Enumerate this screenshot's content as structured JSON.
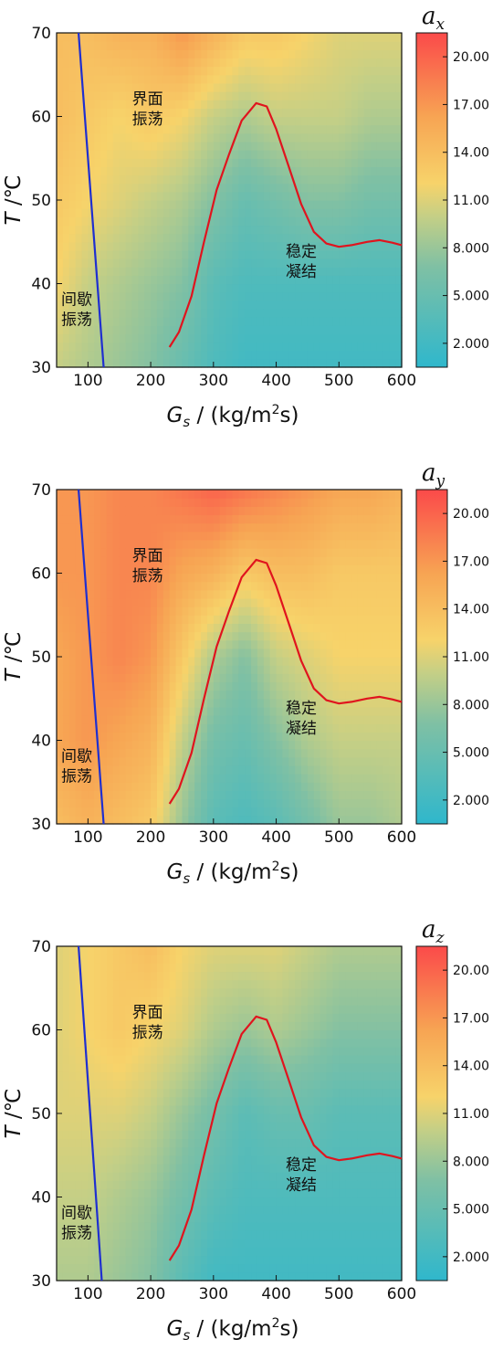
{
  "chart_data": [
    {
      "type": "heatmap",
      "title": "a_x",
      "title_base": "a",
      "title_sub": "x",
      "x_range": [
        50,
        600
      ],
      "y_range": [
        30,
        70
      ],
      "x_ticks": [
        "100",
        "200",
        "300",
        "400",
        "500",
        "600"
      ],
      "y_ticks": [
        "30",
        "40",
        "50",
        "60",
        "70"
      ],
      "xlabel_main": "G",
      "xlabel_sub": "s",
      "xlabel_rest": " / (kg/m",
      "xlabel_sup": "2",
      "xlabel_end": "s)",
      "ylabel_main": "T",
      "ylabel_rest": " /℃",
      "colorbar_ticks": [
        "2.000",
        "5.000",
        "8.000",
        "11.00",
        "14.00",
        "17.00",
        "20.00"
      ],
      "colorbar_range": [
        0.5,
        21.5
      ],
      "annotations": [
        {
          "lines": [
            "界面",
            "振荡"
          ],
          "x": 195,
          "y": 61.5
        },
        {
          "lines": [
            "稳定",
            "凝结"
          ],
          "x": 440,
          "y": 43.2
        },
        {
          "lines": [
            "间歇",
            "振荡"
          ],
          "x": 82,
          "y": 37.5
        }
      ],
      "blue_line": [
        [
          85,
          70
        ],
        [
          125,
          30
        ]
      ],
      "red_curve": [
        [
          230,
          32.4
        ],
        [
          245,
          34.2
        ],
        [
          265,
          38.5
        ],
        [
          285,
          45
        ],
        [
          305,
          51.2
        ],
        [
          325,
          55.5
        ],
        [
          345,
          59.5
        ],
        [
          368,
          61.6
        ],
        [
          385,
          61.2
        ],
        [
          400,
          58.5
        ],
        [
          420,
          54
        ],
        [
          440,
          49.5
        ],
        [
          460,
          46.2
        ],
        [
          480,
          44.8
        ],
        [
          500,
          44.4
        ],
        [
          520,
          44.6
        ],
        [
          545,
          45
        ],
        [
          565,
          45.2
        ],
        [
          585,
          44.9
        ],
        [
          600,
          44.6
        ]
      ],
      "field": {
        "x": [
          50,
          100,
          150,
          200,
          250,
          300,
          350,
          400,
          450,
          500,
          550,
          600
        ],
        "y": [
          30,
          40,
          50,
          60,
          70
        ],
        "z": [
          [
            10,
            9,
            8,
            7,
            5,
            3,
            2,
            2,
            2,
            2,
            2,
            2
          ],
          [
            12,
            10,
            9,
            8,
            7,
            4,
            3,
            3,
            3,
            3,
            3,
            3
          ],
          [
            13,
            12,
            11,
            10,
            9,
            7,
            5,
            6,
            7,
            7,
            6,
            6
          ],
          [
            14,
            13,
            12,
            13,
            12,
            10,
            9,
            10,
            10,
            10,
            9,
            9
          ],
          [
            14,
            14,
            15,
            15,
            17,
            15,
            13,
            13,
            12,
            11,
            11,
            11
          ]
        ]
      }
    },
    {
      "type": "heatmap",
      "title": "a_y",
      "title_base": "a",
      "title_sub": "y",
      "x_range": [
        50,
        600
      ],
      "y_range": [
        30,
        70
      ],
      "x_ticks": [
        "100",
        "200",
        "300",
        "400",
        "500",
        "600"
      ],
      "y_ticks": [
        "30",
        "40",
        "50",
        "60",
        "70"
      ],
      "xlabel_main": "G",
      "xlabel_sub": "s",
      "xlabel_rest": " / (kg/m",
      "xlabel_sup": "2",
      "xlabel_end": "s)",
      "ylabel_main": "T",
      "ylabel_rest": " /℃",
      "colorbar_ticks": [
        "2.000",
        "5.000",
        "8.000",
        "11.00",
        "14.00",
        "17.00",
        "20.00"
      ],
      "colorbar_range": [
        0.5,
        21.5
      ],
      "annotations": [
        {
          "lines": [
            "界面",
            "振荡"
          ],
          "x": 195,
          "y": 61.5
        },
        {
          "lines": [
            "稳定",
            "凝结"
          ],
          "x": 440,
          "y": 43.2
        },
        {
          "lines": [
            "间歇",
            "振荡"
          ],
          "x": 82,
          "y": 37.5
        }
      ],
      "blue_line": [
        [
          85,
          70
        ],
        [
          125,
          30
        ]
      ],
      "red_curve": [
        [
          230,
          32.4
        ],
        [
          245,
          34.2
        ],
        [
          265,
          38.5
        ],
        [
          285,
          45
        ],
        [
          305,
          51.2
        ],
        [
          325,
          55.5
        ],
        [
          345,
          59.5
        ],
        [
          368,
          61.6
        ],
        [
          385,
          61.2
        ],
        [
          400,
          58.5
        ],
        [
          420,
          54
        ],
        [
          440,
          49.5
        ],
        [
          460,
          46.2
        ],
        [
          480,
          44.8
        ],
        [
          500,
          44.4
        ],
        [
          520,
          44.6
        ],
        [
          545,
          45
        ],
        [
          565,
          45.2
        ],
        [
          585,
          44.9
        ],
        [
          600,
          44.6
        ]
      ],
      "field": {
        "x": [
          50,
          100,
          150,
          200,
          250,
          300,
          350,
          400,
          450,
          500,
          550,
          600
        ],
        "y": [
          30,
          40,
          50,
          60,
          70
        ],
        "z": [
          [
            14,
            15,
            14,
            13,
            8,
            4,
            3,
            4,
            6,
            8,
            8,
            9
          ],
          [
            16,
            17,
            16,
            15,
            10,
            6,
            5,
            7,
            9,
            10,
            10,
            10
          ],
          [
            16,
            17,
            18,
            17,
            13,
            9,
            7,
            10,
            11,
            12,
            12,
            12
          ],
          [
            17,
            17,
            18,
            18,
            16,
            15,
            13,
            14,
            14,
            13,
            13,
            13
          ],
          [
            17,
            17,
            18,
            18,
            19,
            20,
            19,
            18,
            17,
            16,
            16,
            15
          ]
        ]
      }
    },
    {
      "type": "heatmap",
      "title": "a_z",
      "title_base": "a",
      "title_sub": "z",
      "x_range": [
        50,
        600
      ],
      "y_range": [
        30,
        70
      ],
      "x_ticks": [
        "100",
        "200",
        "300",
        "400",
        "500",
        "600"
      ],
      "y_ticks": [
        "30",
        "40",
        "50",
        "60",
        "70"
      ],
      "xlabel_main": "G",
      "xlabel_sub": "s",
      "xlabel_rest": " / (kg/m",
      "xlabel_sup": "2",
      "xlabel_end": "s)",
      "ylabel_main": "T",
      "ylabel_rest": " /℃",
      "colorbar_ticks": [
        "2.000",
        "5.000",
        "8.000",
        "11.00",
        "14.00",
        "17.00",
        "20.00"
      ],
      "colorbar_range": [
        0.5,
        21.5
      ],
      "annotations": [
        {
          "lines": [
            "界面",
            "振荡"
          ],
          "x": 195,
          "y": 61.5
        },
        {
          "lines": [
            "稳定",
            "凝结"
          ],
          "x": 440,
          "y": 43.2
        },
        {
          "lines": [
            "间歇",
            "振荡"
          ],
          "x": 82,
          "y": 37.5
        }
      ],
      "blue_line": [
        [
          85,
          70
        ],
        [
          122,
          30
        ]
      ],
      "red_curve": [
        [
          230,
          32.4
        ],
        [
          245,
          34.2
        ],
        [
          265,
          38.5
        ],
        [
          285,
          45
        ],
        [
          305,
          51.2
        ],
        [
          325,
          55.5
        ],
        [
          345,
          59.5
        ],
        [
          368,
          61.6
        ],
        [
          385,
          61.2
        ],
        [
          400,
          58.5
        ],
        [
          420,
          54
        ],
        [
          440,
          49.5
        ],
        [
          460,
          46.2
        ],
        [
          480,
          44.8
        ],
        [
          500,
          44.4
        ],
        [
          520,
          44.6
        ],
        [
          545,
          45
        ],
        [
          565,
          45.2
        ],
        [
          585,
          44.9
        ],
        [
          600,
          44.6
        ]
      ],
      "field": {
        "x": [
          50,
          100,
          150,
          200,
          250,
          300,
          350,
          400,
          450,
          500,
          550,
          600
        ],
        "y": [
          30,
          40,
          50,
          60,
          70
        ],
        "z": [
          [
            9,
            9,
            8,
            7,
            4,
            2,
            2,
            2,
            2,
            2,
            2,
            2
          ],
          [
            10,
            10,
            9,
            8,
            6,
            4,
            3,
            3,
            3,
            3,
            3,
            3
          ],
          [
            11,
            11,
            11,
            10,
            8,
            6,
            4,
            5,
            5,
            4,
            4,
            4
          ],
          [
            11,
            12,
            13,
            12,
            11,
            9,
            8,
            9,
            8,
            7,
            7,
            7
          ],
          [
            11,
            12,
            13,
            14,
            12,
            11,
            11,
            11,
            10,
            9,
            9,
            9
          ]
        ]
      }
    }
  ]
}
